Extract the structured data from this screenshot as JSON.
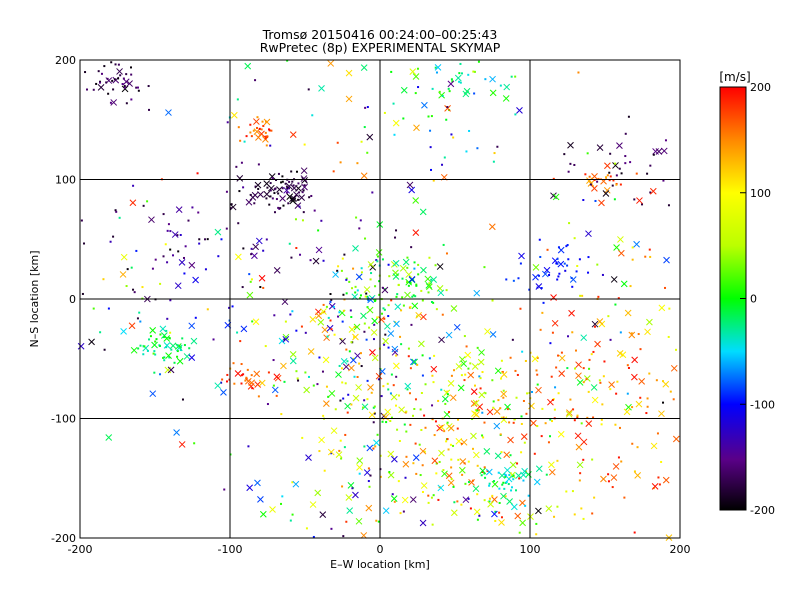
{
  "chart_data": {
    "type": "scatter",
    "title_line1": "Tromsø 20150416 00:24:00–00:25:43",
    "title_line2": "RwPretec (8p) EXPERIMENTAL SKYMAP",
    "xlabel": "E–W location [km]",
    "ylabel": "N–S location [km]",
    "xlim": [
      -200,
      200
    ],
    "ylim": [
      -200,
      200
    ],
    "xticks": [
      "-200",
      "-100",
      "0",
      "100",
      "200"
    ],
    "yticks": [
      "-200",
      "-100",
      "0",
      "100",
      "200"
    ],
    "grid": true,
    "grid_step": 100,
    "colorbar": {
      "label": "[m/s]",
      "min": -200,
      "max": 200,
      "ticks": [
        "-200",
        "-100",
        "0",
        "100",
        "200"
      ],
      "colormap": "black-purple-blue-cyan-green-yellow-orange-red"
    },
    "markers": [
      "small dot",
      "cross"
    ],
    "clusters": [
      {
        "cx": -175,
        "cy": 180,
        "sx": 12,
        "sy": 10,
        "n": 45,
        "vmin": -200,
        "vmax": -150
      },
      {
        "cx": -65,
        "cy": 90,
        "sx": 10,
        "sy": 8,
        "n": 70,
        "vmin": -200,
        "vmax": -160
      },
      {
        "cx": -95,
        "cy": 55,
        "sx": 50,
        "sy": 30,
        "n": 80,
        "vmin": -200,
        "vmax": -120
      },
      {
        "cx": -80,
        "cy": 140,
        "sx": 7,
        "sy": 6,
        "n": 30,
        "vmin": 140,
        "vmax": 200
      },
      {
        "cx": -145,
        "cy": -40,
        "sx": 12,
        "sy": 8,
        "n": 50,
        "vmin": -40,
        "vmax": 10
      },
      {
        "cx": -90,
        "cy": -65,
        "sx": 10,
        "sy": 6,
        "n": 25,
        "vmin": 150,
        "vmax": 200
      },
      {
        "cx": 10,
        "cy": 10,
        "sx": 20,
        "sy": 15,
        "n": 90,
        "vmin": -40,
        "vmax": 60
      },
      {
        "cx": -20,
        "cy": -40,
        "sx": 45,
        "sy": 45,
        "n": 280,
        "vmin": -200,
        "vmax": 200
      },
      {
        "cx": 60,
        "cy": -110,
        "sx": 40,
        "sy": 40,
        "n": 260,
        "vmin": -20,
        "vmax": 200
      },
      {
        "cx": 85,
        "cy": -150,
        "sx": 10,
        "sy": 8,
        "n": 40,
        "vmin": -60,
        "vmax": 0
      },
      {
        "cx": 115,
        "cy": 25,
        "sx": 12,
        "sy": 10,
        "n": 40,
        "vmin": -110,
        "vmax": -80
      },
      {
        "cx": 150,
        "cy": 100,
        "sx": 8,
        "sy": 5,
        "n": 20,
        "vmin": 130,
        "vmax": 200
      },
      {
        "cx": 170,
        "cy": 110,
        "sx": 25,
        "sy": 15,
        "n": 40,
        "vmin": -200,
        "vmax": -150
      },
      {
        "cx": 150,
        "cy": -100,
        "sx": 45,
        "sy": 55,
        "n": 140,
        "vmin": 100,
        "vmax": 200
      },
      {
        "cx": 55,
        "cy": 180,
        "sx": 20,
        "sy": 12,
        "n": 35,
        "vmin": -60,
        "vmax": 30
      },
      {
        "cx": -160,
        "cy": 20,
        "sx": 40,
        "sy": 40,
        "n": 60,
        "vmin": -200,
        "vmax": 200
      },
      {
        "cx": 0,
        "cy": -170,
        "sx": 60,
        "sy": 25,
        "n": 90,
        "vmin": -200,
        "vmax": 200
      },
      {
        "cx": 160,
        "cy": 0,
        "sx": 30,
        "sy": 60,
        "n": 70,
        "vmin": -200,
        "vmax": 200
      },
      {
        "cx": 0,
        "cy": 150,
        "sx": 80,
        "sy": 40,
        "n": 80,
        "vmin": -200,
        "vmax": 200
      }
    ]
  }
}
